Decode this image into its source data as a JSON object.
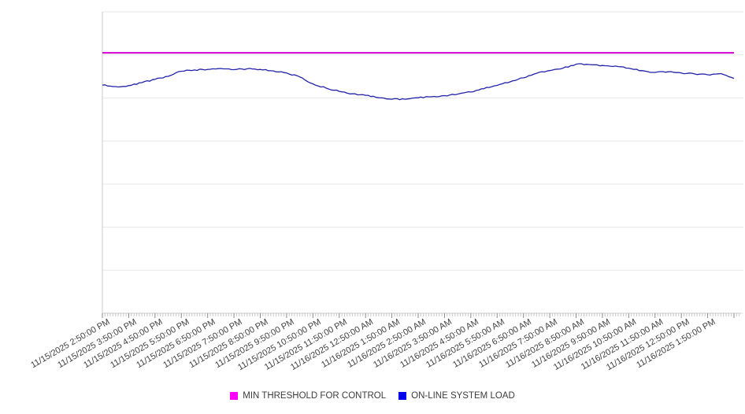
{
  "chart_data": {
    "type": "line",
    "title": "",
    "x_labels": [
      "11/15/2025 2:50:00 PM",
      "11/15/2025 3:50:00 PM",
      "11/15/2025 4:50:00 PM",
      "11/15/2025 5:50:00 PM",
      "11/15/2025 6:50:00 PM",
      "11/15/2025 7:50:00 PM",
      "11/15/2025 8:50:00 PM",
      "11/15/2025 9:50:00 PM",
      "11/15/2025 10:50:00 PM",
      "11/15/2025 11:50:00 PM",
      "11/16/2025 12:50:00 AM",
      "11/16/2025 1:50:00 AM",
      "11/16/2025 2:50:00 AM",
      "11/16/2025 3:50:00 AM",
      "11/16/2025 4:50:00 AM",
      "11/16/2025 5:50:00 AM",
      "11/16/2025 6:50:00 AM",
      "11/16/2025 7:50:00 AM",
      "11/16/2025 8:50:00 AM",
      "11/16/2025 9:50:00 AM",
      "11/16/2025 10:50:00 AM",
      "11/16/2025 11:50:00 AM",
      "11/16/2025 12:50:00 PM",
      "11/16/2025 1:50:00 PM"
    ],
    "x_minor_ticks_per_label_interval": 10,
    "y_axis": {
      "tick_labels_visible": false,
      "normalized_range": [
        0,
        1
      ],
      "values_note": "No y-axis tick labels are shown in the chart; series values are estimated as normalized fraction of plot height (0 = bottom axis, 1 = top gridline)."
    },
    "gridlines": {
      "horizontal_lines": 8,
      "vertical_lines": 0,
      "color": "#e7e7e7"
    },
    "series": [
      {
        "name": "MIN THRESHOLD FOR CONTROL",
        "type": "constant-line",
        "color": "#cf00cf",
        "value": 0.864
      },
      {
        "name": "ON-LINE SYSTEM LOAD",
        "type": "line",
        "color": "#2222aa",
        "values_note": "estimated every 30 minutes from 11/15/2025 2:50 PM to 11/16/2025 2:50 PM",
        "values": [
          0.757,
          0.752,
          0.755,
          0.765,
          0.776,
          0.786,
          0.803,
          0.807,
          0.809,
          0.812,
          0.808,
          0.811,
          0.809,
          0.804,
          0.797,
          0.784,
          0.761,
          0.747,
          0.736,
          0.728,
          0.723,
          0.715,
          0.71,
          0.71,
          0.715,
          0.718,
          0.722,
          0.727,
          0.734,
          0.745,
          0.756,
          0.768,
          0.781,
          0.796,
          0.805,
          0.813,
          0.826,
          0.825,
          0.822,
          0.82,
          0.813,
          0.805,
          0.799,
          0.801,
          0.797,
          0.794,
          0.791,
          0.795,
          0.779
        ]
      }
    ],
    "legend": {
      "position": "bottom",
      "items": [
        {
          "label": "MIN THRESHOLD FOR CONTROL",
          "swatch_color": "#ff00ff"
        },
        {
          "label": "ON-LINE SYSTEM LOAD",
          "swatch_color": "#0000ee"
        }
      ]
    },
    "axis_colors": {
      "axis_line": "#c8c8c8",
      "minor_tick": "#c9c9c9",
      "major_tick": "#8a8a8a",
      "label_text": "#404040"
    }
  }
}
